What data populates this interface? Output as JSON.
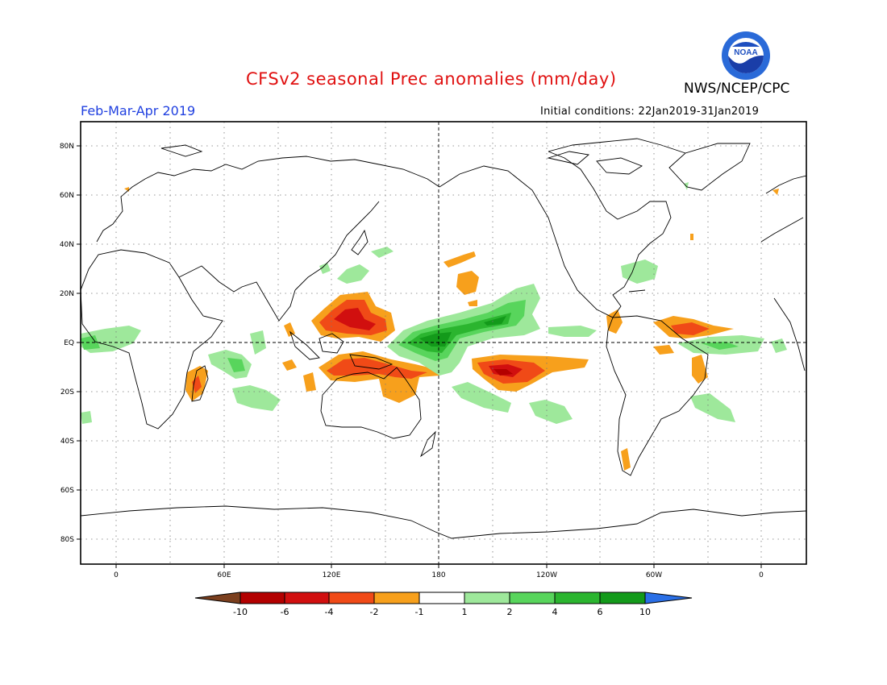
{
  "header": {
    "title": "CFSv2 seasonal Prec anomalies (mm/day)",
    "agency": "NWS/NCEP/CPC",
    "logo_text": "NOAA",
    "period": "Feb-Mar-Apr 2019",
    "initial_conditions": "Initial conditions: 22Jan2019-31Jan2019"
  },
  "map": {
    "projection": "equirectangular",
    "lon_range": [
      -20,
      380
    ],
    "lat_range": [
      -90,
      90
    ],
    "grid": "dotted every 30° lon / 20° lat",
    "lat_labels": [
      "80N",
      "60N",
      "40N",
      "20N",
      "EQ",
      "20S",
      "40S",
      "60S",
      "80S"
    ],
    "lon_labels": [
      "0",
      "60E",
      "120E",
      "180",
      "120W",
      "60W",
      "0"
    ]
  },
  "colorbar": {
    "labels": [
      "-10",
      "-6",
      "-4",
      "-2",
      "-1",
      "1",
      "2",
      "4",
      "6",
      "10"
    ],
    "colors": [
      "#7b3f1e",
      "#b30000",
      "#d10f0f",
      "#f04a17",
      "#f7a01c",
      "#ffffff",
      "#9ee89b",
      "#58d55c",
      "#2bb52f",
      "#139a1a",
      "#2a6fe6"
    ]
  },
  "chart_data": {
    "type": "map",
    "variable": "precipitation anomaly",
    "units": "mm/day",
    "anomaly_regions": [
      {
        "region": "Philippine Sea / Western North Pacific",
        "level": "-4 to -6"
      },
      {
        "region": "Maritime Continent / northern Australia",
        "level": "-2 to -4"
      },
      {
        "region": "Central South Pacific (around 165W,10S)",
        "level": "-4 to -6"
      },
      {
        "region": "Equatorial Atlantic north of Brazil",
        "level": "-2 to -4"
      },
      {
        "region": "Equatorial West-Central Pacific (170E-150W)",
        "level": "+2 to +6"
      },
      {
        "region": "Tropical Indian Ocean",
        "level": "+1 to +2"
      },
      {
        "region": "Tropical Atlantic south of equator",
        "level": "+1 to +2"
      }
    ]
  }
}
